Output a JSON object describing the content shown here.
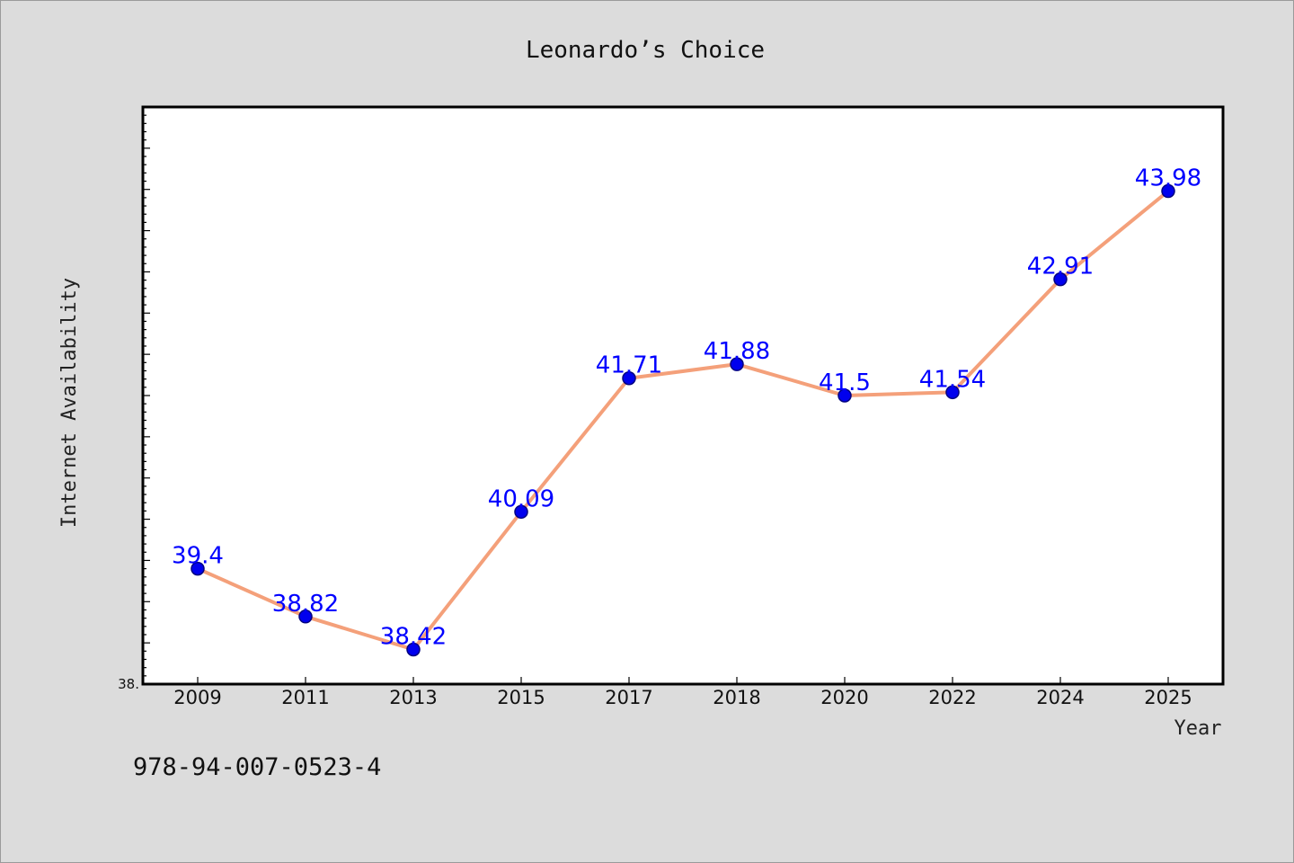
{
  "chart_data": {
    "type": "line",
    "title": "Leonardo’s Choice",
    "xlabel": "Year",
    "ylabel": "Internet Availability",
    "categories": [
      "2009",
      "2011",
      "2013",
      "2015",
      "2017",
      "2018",
      "2020",
      "2022",
      "2024",
      "2025"
    ],
    "series": [
      {
        "values": [
          39.4,
          38.82,
          38.42,
          40.09,
          41.71,
          41.88,
          41.5,
          41.54,
          42.91,
          43.98
        ],
        "data_labels": [
          "39.4",
          "38.82",
          "38.42",
          "40.09",
          "41.71",
          "41.88",
          "41.5",
          "41.54",
          "42.91",
          "43.98"
        ]
      }
    ],
    "ylim": [
      38.0,
      45.0
    ],
    "ytick_labels": [
      "38."
    ],
    "grid": false,
    "colors": {
      "line": "#f4a07a",
      "marker": "#0000ee",
      "marker_edge": "#000080",
      "label": "#0000ff"
    }
  },
  "footer": {
    "isbn": "978-94-007-0523-4"
  }
}
